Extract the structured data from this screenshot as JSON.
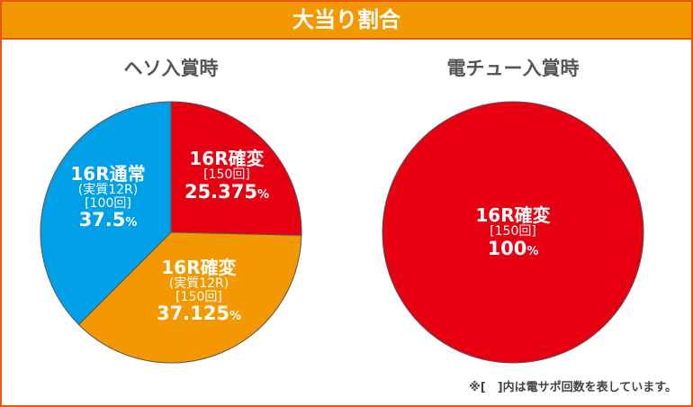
{
  "header": {
    "title": "大当り割合"
  },
  "chart_data": [
    {
      "type": "pie",
      "title": "ヘソ入賞時",
      "start": "top",
      "direction": "clockwise",
      "slices": [
        {
          "name": "16R確変",
          "sub": "",
          "rounds": "[150回]",
          "value": 25.375,
          "label": "25.375",
          "unit": "%",
          "color": "#e60012"
        },
        {
          "name": "16R確変",
          "sub": "(実質12R)",
          "rounds": "[150回]",
          "value": 37.125,
          "label": "37.125",
          "unit": "%",
          "color": "#f39800"
        },
        {
          "name": "16R通常",
          "sub": "(実質12R)",
          "rounds": "[100回]",
          "value": 37.5,
          "label": "37.5",
          "unit": "%",
          "color": "#00a0e9"
        }
      ]
    },
    {
      "type": "pie",
      "title": "電チュー入賞時",
      "start": "top",
      "direction": "clockwise",
      "slices": [
        {
          "name": "16R確変",
          "sub": "",
          "rounds": "[150回]",
          "value": 100,
          "label": "100",
          "unit": "%",
          "color": "#e60012"
        }
      ]
    }
  ],
  "note": "※[　]内は電サポ回数を表しています。"
}
